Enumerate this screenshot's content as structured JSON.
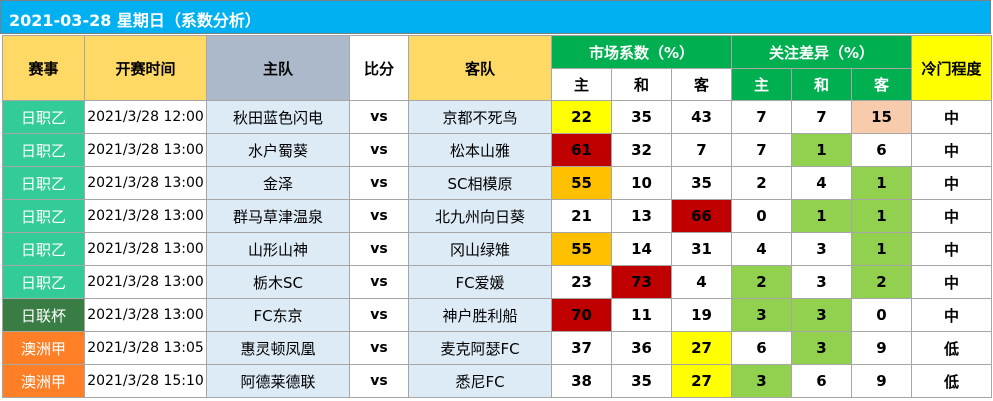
{
  "title": "2021-03-28  星期日（系数分析）",
  "headers": {
    "league": "赛事",
    "time": "开赛时间",
    "home": "主队",
    "score": "比分",
    "away": "客队",
    "market": "市场系数（%）",
    "attention": "关注差异（%）",
    "upset": "冷门程度",
    "sub_home": "主",
    "sub_draw": "和",
    "sub_away": "客"
  },
  "colors": {
    "league_j2": "#33CC99",
    "league_cup": "#3A7D44",
    "league_aus": "#FF7F27",
    "cell_red": "#C00000",
    "cell_orange": "#FFC000",
    "cell_yellow": "#FFFF00",
    "cell_peach": "#F8CBAD",
    "cell_green": "#92D050"
  },
  "rows": [
    {
      "league": "日职乙",
      "league_color": "#33CC99",
      "time": "2021/3/28 12:00",
      "home": "秋田蓝色闪电",
      "score": "vs",
      "away": "京都不死鸟",
      "m": [
        "22",
        "35",
        "43"
      ],
      "m_bg": [
        "#FFFF00",
        "#ffffff",
        "#ffffff"
      ],
      "a": [
        "7",
        "7",
        "15"
      ],
      "a_bg": [
        "#ffffff",
        "#ffffff",
        "#F8CBAD"
      ],
      "level": "中"
    },
    {
      "league": "日职乙",
      "league_color": "#33CC99",
      "time": "2021/3/28 13:00",
      "home": "水户蜀葵",
      "score": "vs",
      "away": "松本山雅",
      "m": [
        "61",
        "32",
        "7"
      ],
      "m_bg": [
        "#C00000",
        "#ffffff",
        "#ffffff"
      ],
      "a": [
        "7",
        "1",
        "6"
      ],
      "a_bg": [
        "#ffffff",
        "#92D050",
        "#ffffff"
      ],
      "level": "中"
    },
    {
      "league": "日职乙",
      "league_color": "#33CC99",
      "time": "2021/3/28 13:00",
      "home": "金泽",
      "score": "vs",
      "away": "SC相模原",
      "m": [
        "55",
        "10",
        "35"
      ],
      "m_bg": [
        "#FFC000",
        "#ffffff",
        "#ffffff"
      ],
      "a": [
        "2",
        "4",
        "1"
      ],
      "a_bg": [
        "#ffffff",
        "#ffffff",
        "#92D050"
      ],
      "level": "中"
    },
    {
      "league": "日职乙",
      "league_color": "#33CC99",
      "time": "2021/3/28 13:00",
      "home": "群马草津温泉",
      "score": "vs",
      "away": "北九州向日葵",
      "m": [
        "21",
        "13",
        "66"
      ],
      "m_bg": [
        "#ffffff",
        "#ffffff",
        "#C00000"
      ],
      "a": [
        "0",
        "1",
        "1"
      ],
      "a_bg": [
        "#ffffff",
        "#92D050",
        "#92D050"
      ],
      "level": "中"
    },
    {
      "league": "日职乙",
      "league_color": "#33CC99",
      "time": "2021/3/28 13:00",
      "home": "山形山神",
      "score": "vs",
      "away": "冈山绿雉",
      "m": [
        "55",
        "14",
        "31"
      ],
      "m_bg": [
        "#FFC000",
        "#ffffff",
        "#ffffff"
      ],
      "a": [
        "4",
        "3",
        "1"
      ],
      "a_bg": [
        "#ffffff",
        "#ffffff",
        "#92D050"
      ],
      "level": "中"
    },
    {
      "league": "日职乙",
      "league_color": "#33CC99",
      "time": "2021/3/28 13:00",
      "home": "栃木SC",
      "score": "vs",
      "away": "FC爱媛",
      "m": [
        "23",
        "73",
        "4"
      ],
      "m_bg": [
        "#ffffff",
        "#C00000",
        "#ffffff"
      ],
      "a": [
        "2",
        "3",
        "2"
      ],
      "a_bg": [
        "#92D050",
        "#ffffff",
        "#92D050"
      ],
      "level": "中"
    },
    {
      "league": "日联杯",
      "league_color": "#3A7D44",
      "time": "2021/3/28 13:00",
      "home": "FC东京",
      "score": "vs",
      "away": "神户胜利船",
      "m": [
        "70",
        "11",
        "19"
      ],
      "m_bg": [
        "#C00000",
        "#ffffff",
        "#ffffff"
      ],
      "a": [
        "3",
        "3",
        "0"
      ],
      "a_bg": [
        "#92D050",
        "#92D050",
        "#ffffff"
      ],
      "level": "中"
    },
    {
      "league": "澳洲甲",
      "league_color": "#FF7F27",
      "time": "2021/3/28 13:05",
      "home": "惠灵顿凤凰",
      "score": "vs",
      "away": "麦克阿瑟FC",
      "m": [
        "37",
        "36",
        "27"
      ],
      "m_bg": [
        "#ffffff",
        "#ffffff",
        "#FFFF00"
      ],
      "a": [
        "6",
        "3",
        "9"
      ],
      "a_bg": [
        "#ffffff",
        "#92D050",
        "#ffffff"
      ],
      "level": "低"
    },
    {
      "league": "澳洲甲",
      "league_color": "#FF7F27",
      "time": "2021/3/28 15:10",
      "home": "阿德莱德联",
      "score": "vs",
      "away": "悉尼FC",
      "m": [
        "38",
        "35",
        "27"
      ],
      "m_bg": [
        "#ffffff",
        "#ffffff",
        "#FFFF00"
      ],
      "a": [
        "3",
        "6",
        "9"
      ],
      "a_bg": [
        "#92D050",
        "#ffffff",
        "#ffffff"
      ],
      "level": "低"
    }
  ]
}
